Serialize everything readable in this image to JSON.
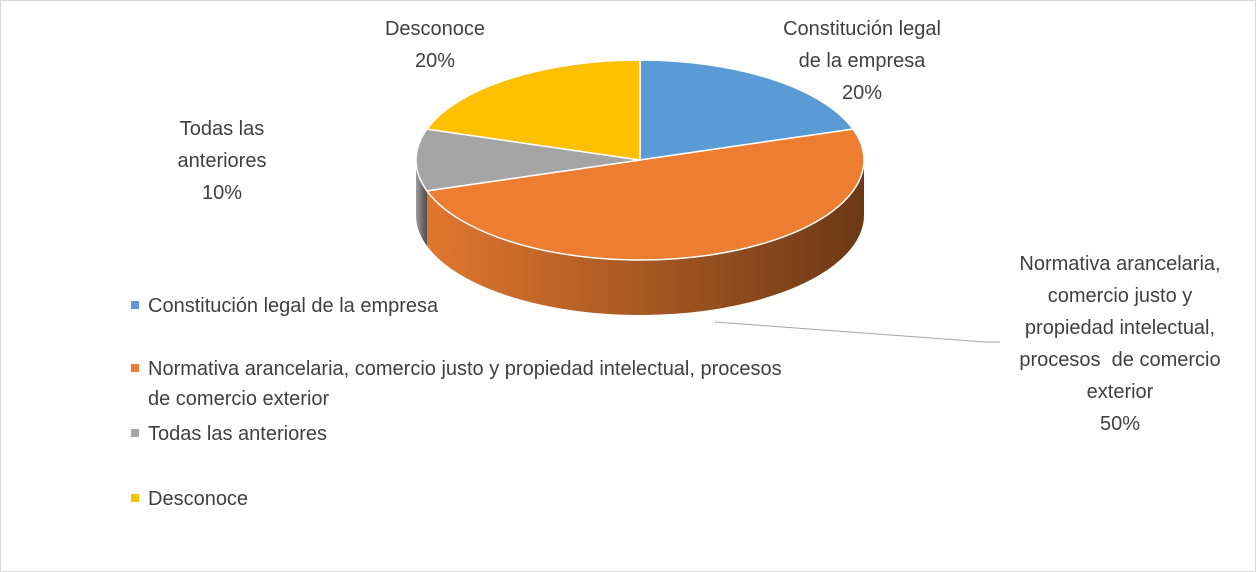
{
  "chart_data": {
    "type": "pie",
    "categories": [
      "Constitución legal de la empresa",
      "Normativa arancelaria, comercio justo y propiedad intelectual, procesos  de comercio exterior",
      "Todas las anteriores",
      "Desconoce"
    ],
    "values": [
      20,
      50,
      10,
      20
    ],
    "value_labels": [
      "20%",
      "50%",
      "10%",
      "20%"
    ],
    "colors": [
      "#5b9bd5",
      "#ed7d31",
      "#a5a5a5",
      "#ffc000"
    ],
    "legend": "left"
  }
}
